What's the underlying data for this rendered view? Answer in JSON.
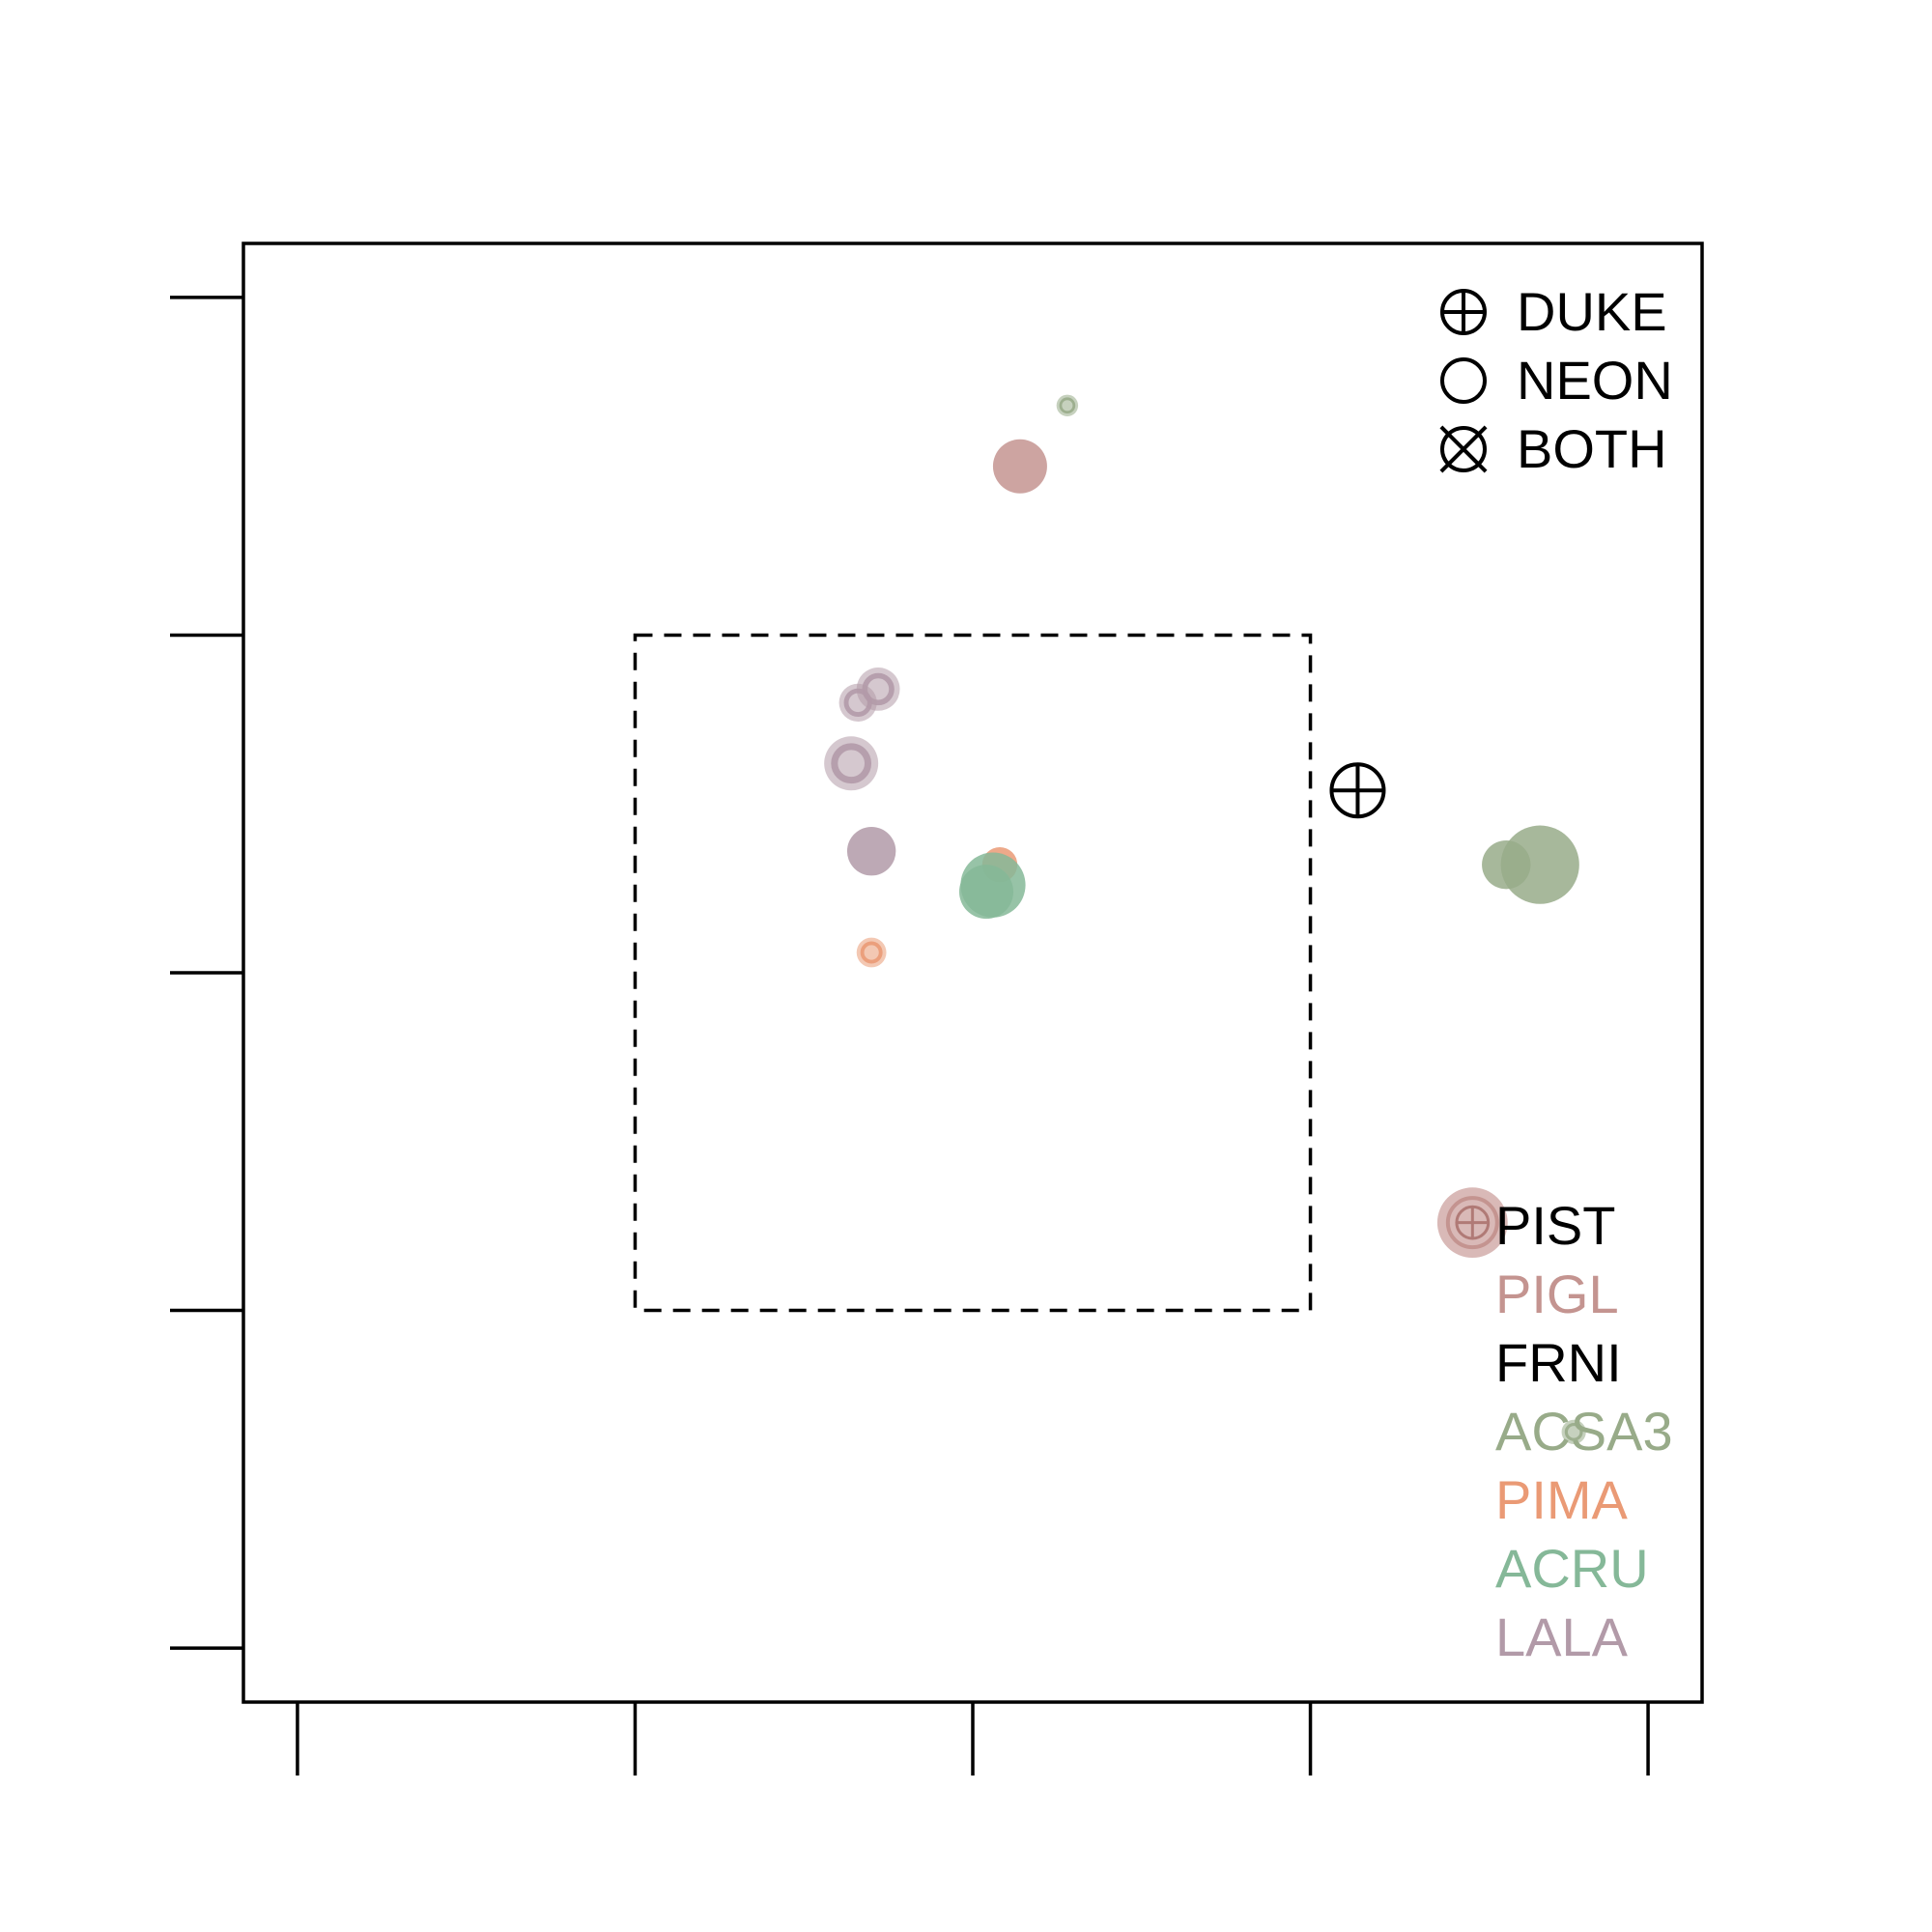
{
  "chart_data": {
    "type": "scatter",
    "title": "",
    "xlabel": "",
    "ylabel": "",
    "xlim": [
      -0.08,
      2.08
    ],
    "ylim": [
      -0.08,
      2.08
    ],
    "xticks": [
      0,
      0.5,
      1,
      1.5,
      2
    ],
    "yticks": [
      0,
      0.5,
      1,
      1.5,
      2
    ],
    "grid": false,
    "reference_box": {
      "x": [
        0.5,
        1.5
      ],
      "y": [
        0.5,
        1.5
      ],
      "style": "dashed"
    },
    "shape_legend": {
      "placement": "top-right",
      "items": [
        {
          "label": "DUKE",
          "symbol": "circle-plus"
        },
        {
          "label": "NEON",
          "symbol": "circle"
        },
        {
          "label": "BOTH",
          "symbol": "circle-cross"
        }
      ]
    },
    "species_legend": {
      "placement": "bottom-right",
      "items": [
        {
          "label": "PIST",
          "color": "#000000"
        },
        {
          "label": "PIGL",
          "color": "#c49490"
        },
        {
          "label": "FRNI",
          "color": "#000000"
        },
        {
          "label": "ACSA3",
          "color": "#98ab89"
        },
        {
          "label": "PIMA",
          "color": "#ea9a75"
        },
        {
          "label": "ACRU",
          "color": "#85b898"
        },
        {
          "label": "LALA",
          "color": "#b29aa8"
        }
      ]
    },
    "series": [
      {
        "species": "PIST",
        "color": "#000000",
        "points": [
          {
            "x": 1.57,
            "y": 1.27,
            "size": 1.0,
            "symbol": "circle-plus"
          }
        ]
      },
      {
        "species": "PIGL",
        "color": "#c49490",
        "points": [
          {
            "x": 1.07,
            "y": 1.75,
            "size": 1.0,
            "symbol": "filled"
          },
          {
            "x": 1.74,
            "y": 0.63,
            "size": 1.3,
            "symbol": "ring-plus"
          }
        ]
      },
      {
        "species": "ACSA3",
        "color": "#98ab89",
        "points": [
          {
            "x": 1.14,
            "y": 1.84,
            "size": 0.4,
            "symbol": "ring"
          },
          {
            "x": 1.79,
            "y": 1.16,
            "size": 0.9,
            "symbol": "filled"
          },
          {
            "x": 1.84,
            "y": 1.16,
            "size": 1.45,
            "symbol": "filled"
          },
          {
            "x": 1.89,
            "y": 0.32,
            "size": 0.45,
            "symbol": "ring"
          }
        ]
      },
      {
        "species": "PIMA",
        "color": "#ea9a75",
        "points": [
          {
            "x": 1.04,
            "y": 1.16,
            "size": 0.65,
            "symbol": "filled"
          },
          {
            "x": 0.85,
            "y": 1.03,
            "size": 0.55,
            "symbol": "ring"
          }
        ]
      },
      {
        "species": "ACRU",
        "color": "#85b898",
        "points": [
          {
            "x": 1.03,
            "y": 1.13,
            "size": 1.2,
            "symbol": "filled"
          },
          {
            "x": 1.02,
            "y": 1.12,
            "size": 1.0,
            "symbol": "filled"
          }
        ]
      },
      {
        "species": "LALA",
        "color": "#b29aa8",
        "points": [
          {
            "x": 0.86,
            "y": 1.42,
            "size": 0.8,
            "symbol": "ring"
          },
          {
            "x": 0.83,
            "y": 1.4,
            "size": 0.7,
            "symbol": "ring"
          },
          {
            "x": 0.82,
            "y": 1.31,
            "size": 1.0,
            "symbol": "ring"
          },
          {
            "x": 0.85,
            "y": 1.18,
            "size": 0.9,
            "symbol": "filled"
          }
        ]
      }
    ]
  }
}
